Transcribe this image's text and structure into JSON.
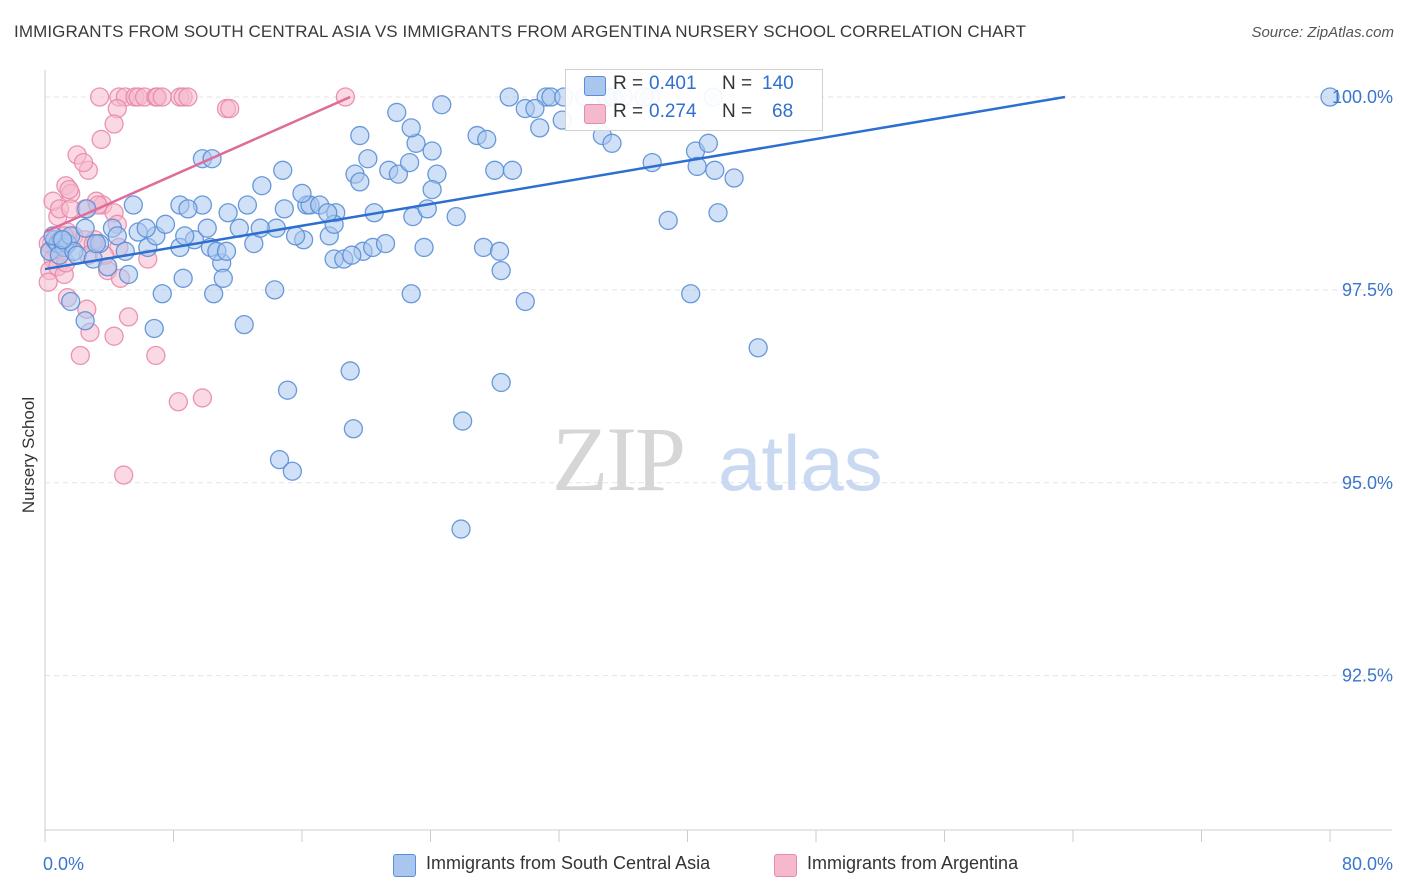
{
  "title": "IMMIGRANTS FROM SOUTH CENTRAL ASIA VS IMMIGRANTS FROM ARGENTINA NURSERY SCHOOL CORRELATION CHART",
  "source": "Source: ZipAtlas.com",
  "watermark": {
    "zip": "ZIP",
    "atlas": "atlas"
  },
  "legend_stats": [
    {
      "r_label": "R =",
      "r_value": "0.401",
      "n_label": "N =",
      "n_value": "140"
    },
    {
      "r_label": "R =",
      "r_value": "0.274",
      "n_label": "N =",
      "n_value": "68"
    }
  ],
  "colors": {
    "blue_fill": "#a9c6ef",
    "blue_stroke": "#5a8fd6",
    "blue_line": "#2c6fd1",
    "pink_fill": "#f5b9cd",
    "pink_stroke": "#e88aaa",
    "pink_line": "#e06a98",
    "axis_text": "#3a76cc",
    "grid": "#e4e4e4"
  },
  "chart_data": {
    "type": "scatter",
    "title": "IMMIGRANTS FROM SOUTH CENTRAL ASIA VS IMMIGRANTS FROM ARGENTINA NURSERY SCHOOL CORRELATION CHART",
    "xlabel": "",
    "ylabel": "Nursery School",
    "xlim": [
      0,
      80
    ],
    "ylim": [
      90.5,
      100.35
    ],
    "x_tick_labels": [
      "0.0%",
      "80.0%"
    ],
    "y_ticks": [
      92.5,
      95.0,
      97.5,
      100.0
    ],
    "y_tick_labels": [
      "92.5%",
      "95.0%",
      "97.5%",
      "100.0%"
    ],
    "series": [
      {
        "name": "Immigrants from South Central Asia",
        "color": "blue",
        "r": 0.401,
        "n": 140,
        "trend": {
          "x": [
            0.0,
            63.5
          ],
          "y": [
            97.77,
            100.0
          ]
        },
        "points": [
          [
            0.3,
            98.0
          ],
          [
            0.6,
            98.15
          ],
          [
            0.8,
            98.1
          ],
          [
            1.0,
            98.15
          ],
          [
            1.2,
            98.05
          ],
          [
            1.4,
            98.1
          ],
          [
            0.5,
            98.2
          ],
          [
            0.9,
            97.95
          ],
          [
            1.6,
            98.2
          ],
          [
            1.8,
            98.0
          ],
          [
            2.0,
            97.95
          ],
          [
            1.1,
            98.15
          ],
          [
            2.5,
            98.3
          ],
          [
            3.4,
            98.1
          ],
          [
            3.0,
            97.9
          ],
          [
            3.9,
            97.8
          ],
          [
            4.2,
            98.3
          ],
          [
            4.5,
            98.2
          ],
          [
            5.0,
            98.0
          ],
          [
            5.8,
            98.25
          ],
          [
            6.4,
            98.05
          ],
          [
            6.9,
            98.2
          ],
          [
            8.4,
            98.05
          ],
          [
            9.3,
            98.15
          ],
          [
            10.3,
            98.05
          ],
          [
            11.0,
            97.85
          ],
          [
            12.1,
            98.3
          ],
          [
            13.0,
            98.1
          ],
          [
            14.4,
            98.3
          ],
          [
            16.1,
            98.15
          ],
          [
            17.7,
            98.2
          ],
          [
            19.8,
            98.0
          ],
          [
            2.6,
            98.55
          ],
          [
            5.5,
            98.6
          ],
          [
            8.4,
            98.6
          ],
          [
            9.8,
            98.6
          ],
          [
            11.4,
            98.5
          ],
          [
            12.6,
            98.6
          ],
          [
            14.9,
            98.55
          ],
          [
            16.3,
            98.6
          ],
          [
            16.5,
            98.6
          ],
          [
            18.1,
            98.5
          ],
          [
            20.5,
            98.5
          ],
          [
            22.9,
            98.45
          ],
          [
            23.8,
            98.55
          ],
          [
            25.6,
            98.45
          ],
          [
            3.2,
            98.1
          ],
          [
            6.3,
            98.3
          ],
          [
            8.7,
            98.2
          ],
          [
            10.7,
            98.0
          ],
          [
            11.3,
            98.0
          ],
          [
            15.6,
            98.2
          ],
          [
            18.0,
            98.35
          ],
          [
            20.4,
            98.05
          ],
          [
            23.6,
            98.05
          ],
          [
            27.3,
            98.05
          ],
          [
            28.3,
            98.0
          ],
          [
            7.5,
            98.35
          ],
          [
            8.9,
            98.55
          ],
          [
            10.1,
            98.3
          ],
          [
            13.4,
            98.3
          ],
          [
            9.8,
            99.2
          ],
          [
            10.4,
            99.2
          ],
          [
            13.5,
            98.85
          ],
          [
            14.8,
            99.05
          ],
          [
            16.0,
            98.75
          ],
          [
            17.1,
            98.6
          ],
          [
            17.6,
            98.5
          ],
          [
            19.3,
            99.0
          ],
          [
            19.6,
            98.9
          ],
          [
            20.1,
            99.2
          ],
          [
            21.4,
            99.05
          ],
          [
            22.0,
            99.0
          ],
          [
            22.7,
            99.15
          ],
          [
            23.1,
            99.4
          ],
          [
            24.4,
            99.0
          ],
          [
            24.1,
            98.8
          ],
          [
            19.6,
            99.5
          ],
          [
            21.9,
            99.8
          ],
          [
            22.8,
            99.6
          ],
          [
            24.1,
            99.3
          ],
          [
            26.9,
            99.5
          ],
          [
            27.5,
            99.45
          ],
          [
            28.0,
            99.05
          ],
          [
            29.1,
            99.05
          ],
          [
            30.8,
            99.6
          ],
          [
            32.2,
            99.7
          ],
          [
            34.7,
            99.5
          ],
          [
            35.3,
            99.4
          ],
          [
            37.8,
            99.15
          ],
          [
            40.5,
            99.3
          ],
          [
            40.6,
            99.1
          ],
          [
            41.7,
            99.05
          ],
          [
            42.9,
            98.95
          ],
          [
            34.9,
            100.0
          ],
          [
            35.0,
            100.0
          ],
          [
            35.4,
            100.0
          ],
          [
            36.0,
            100.0
          ],
          [
            37.7,
            100.0
          ],
          [
            24.7,
            99.9
          ],
          [
            28.9,
            100.0
          ],
          [
            41.6,
            100.0
          ],
          [
            41.3,
            99.4
          ],
          [
            21.2,
            98.1
          ],
          [
            28.4,
            97.75
          ],
          [
            38.8,
            98.4
          ],
          [
            41.9,
            98.5
          ],
          [
            5.2,
            97.7
          ],
          [
            8.6,
            97.65
          ],
          [
            7.3,
            97.45
          ],
          [
            10.5,
            97.45
          ],
          [
            11.1,
            97.65
          ],
          [
            14.3,
            97.5
          ],
          [
            18.0,
            97.9
          ],
          [
            18.6,
            97.9
          ],
          [
            19.1,
            97.95
          ],
          [
            22.8,
            97.45
          ],
          [
            29.9,
            97.35
          ],
          [
            40.2,
            97.45
          ],
          [
            1.6,
            97.35
          ],
          [
            2.5,
            97.1
          ],
          [
            6.8,
            97.0
          ],
          [
            12.4,
            97.05
          ],
          [
            44.4,
            96.75
          ],
          [
            19.0,
            96.45
          ],
          [
            15.1,
            96.2
          ],
          [
            28.4,
            96.3
          ],
          [
            26.0,
            95.8
          ],
          [
            19.2,
            95.7
          ],
          [
            14.6,
            95.3
          ],
          [
            15.4,
            95.15
          ],
          [
            25.9,
            94.4
          ],
          [
            31.2,
            100.0
          ],
          [
            31.5,
            100.0
          ],
          [
            32.3,
            100.0
          ],
          [
            29.9,
            99.85
          ],
          [
            30.5,
            99.85
          ],
          [
            33.6,
            100.0
          ],
          [
            80.0,
            100.0
          ],
          [
            37.3,
            100.0
          ]
        ]
      },
      {
        "name": "Immigrants from Argentina",
        "color": "pink",
        "r": 0.274,
        "n": 68,
        "trend": {
          "x": [
            0.0,
            19.0
          ],
          "y": [
            98.25,
            100.0
          ]
        },
        "points": [
          [
            3.4,
            100.0
          ],
          [
            4.6,
            100.0
          ],
          [
            5.0,
            100.0
          ],
          [
            5.6,
            100.0
          ],
          [
            5.8,
            100.0
          ],
          [
            6.2,
            100.0
          ],
          [
            6.9,
            100.0
          ],
          [
            7.0,
            100.0
          ],
          [
            7.3,
            100.0
          ],
          [
            8.4,
            100.0
          ],
          [
            8.6,
            100.0
          ],
          [
            8.9,
            100.0
          ],
          [
            18.7,
            100.0
          ],
          [
            11.3,
            99.85
          ],
          [
            11.5,
            99.85
          ],
          [
            4.5,
            99.85
          ],
          [
            4.3,
            99.65
          ],
          [
            3.5,
            99.45
          ],
          [
            2.0,
            99.25
          ],
          [
            2.7,
            99.05
          ],
          [
            2.4,
            99.15
          ],
          [
            1.3,
            98.85
          ],
          [
            1.6,
            98.75
          ],
          [
            1.5,
            98.8
          ],
          [
            3.2,
            98.65
          ],
          [
            2.5,
            98.55
          ],
          [
            3.6,
            98.6
          ],
          [
            4.3,
            98.5
          ],
          [
            0.8,
            98.45
          ],
          [
            0.5,
            98.65
          ],
          [
            0.9,
            98.55
          ],
          [
            1.6,
            98.55
          ],
          [
            3.1,
            98.15
          ],
          [
            1.8,
            98.2
          ],
          [
            2.5,
            98.15
          ],
          [
            4.5,
            98.35
          ],
          [
            1.4,
            98.25
          ],
          [
            3.0,
            98.1
          ],
          [
            1.2,
            98.2
          ],
          [
            0.4,
            98.1
          ],
          [
            0.6,
            98.05
          ],
          [
            1.0,
            98.0
          ],
          [
            0.2,
            98.1
          ],
          [
            0.3,
            98.0
          ],
          [
            0.5,
            97.9
          ],
          [
            2.7,
            97.95
          ],
          [
            4.6,
            98.05
          ],
          [
            6.4,
            97.9
          ],
          [
            0.3,
            97.75
          ],
          [
            0.8,
            97.8
          ],
          [
            1.2,
            97.7
          ],
          [
            0.2,
            97.6
          ],
          [
            3.9,
            97.75
          ],
          [
            4.7,
            97.65
          ],
          [
            1.4,
            97.4
          ],
          [
            2.6,
            97.25
          ],
          [
            5.2,
            97.15
          ],
          [
            2.8,
            96.95
          ],
          [
            4.3,
            96.9
          ],
          [
            2.2,
            96.65
          ],
          [
            6.9,
            96.65
          ],
          [
            8.3,
            96.05
          ],
          [
            9.8,
            96.1
          ],
          [
            4.9,
            95.1
          ],
          [
            3.7,
            97.95
          ],
          [
            1.3,
            97.85
          ],
          [
            3.3,
            98.6
          ],
          [
            0.6,
            98.15
          ]
        ]
      }
    ]
  }
}
